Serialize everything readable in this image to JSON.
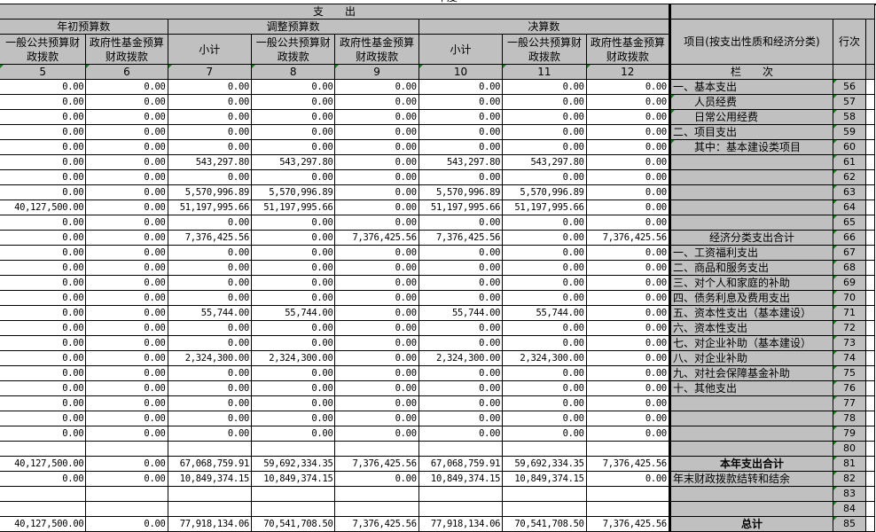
{
  "header": {
    "top_fragment": "年度",
    "expenditure": "支　　出",
    "groups": [
      "年初预算数",
      "调整预算数",
      "决算数"
    ],
    "sub": {
      "general": "一般公共预算财政拨款",
      "fund": "政府性基金预算财政拨款",
      "subtotal": "小计"
    },
    "item_col": "项目(按支出性质和经济分类)",
    "row_col": "行次",
    "col_numbers": [
      "5",
      "6",
      "7",
      "8",
      "9",
      "10",
      "11",
      "12"
    ],
    "lan_ci": "栏　　次"
  },
  "rows": [
    {
      "no": "56",
      "item": "一、基本支出",
      "style": "",
      "v": [
        "0.00",
        "0.00",
        "0.00",
        "0.00",
        "0.00",
        "0.00",
        "0.00",
        "0.00"
      ]
    },
    {
      "no": "57",
      "item": "人员经费",
      "style": "ind",
      "v": [
        "0.00",
        "0.00",
        "0.00",
        "0.00",
        "0.00",
        "0.00",
        "0.00",
        "0.00"
      ]
    },
    {
      "no": "58",
      "item": "日常公用经费",
      "style": "ind",
      "v": [
        "0.00",
        "0.00",
        "0.00",
        "0.00",
        "0.00",
        "0.00",
        "0.00",
        "0.00"
      ]
    },
    {
      "no": "59",
      "item": "二、项目支出",
      "style": "",
      "v": [
        "0.00",
        "0.00",
        "0.00",
        "0.00",
        "0.00",
        "0.00",
        "0.00",
        "0.00"
      ]
    },
    {
      "no": "60",
      "item": "其中：基本建设类项目",
      "style": "ind",
      "v": [
        "0.00",
        "0.00",
        "0.00",
        "0.00",
        "0.00",
        "0.00",
        "0.00",
        "0.00"
      ]
    },
    {
      "no": "61",
      "item": "",
      "style": "",
      "v": [
        "0.00",
        "0.00",
        "543,297.80",
        "543,297.80",
        "0.00",
        "543,297.80",
        "543,297.80",
        "0.00"
      ]
    },
    {
      "no": "62",
      "item": "",
      "style": "",
      "v": [
        "0.00",
        "0.00",
        "0.00",
        "0.00",
        "0.00",
        "0.00",
        "0.00",
        "0.00"
      ]
    },
    {
      "no": "63",
      "item": "",
      "style": "",
      "v": [
        "0.00",
        "0.00",
        "5,570,996.89",
        "5,570,996.89",
        "0.00",
        "5,570,996.89",
        "5,570,996.89",
        "0.00"
      ]
    },
    {
      "no": "64",
      "item": "",
      "style": "",
      "v": [
        "40,127,500.00",
        "0.00",
        "51,197,995.66",
        "51,197,995.66",
        "0.00",
        "51,197,995.66",
        "51,197,995.66",
        "0.00"
      ]
    },
    {
      "no": "65",
      "item": "",
      "style": "",
      "v": [
        "0.00",
        "0.00",
        "0.00",
        "0.00",
        "0.00",
        "0.00",
        "0.00",
        "0.00"
      ]
    },
    {
      "no": "66",
      "item": "经济分类支出合计",
      "style": "c",
      "v": [
        "0.00",
        "0.00",
        "7,376,425.56",
        "0.00",
        "7,376,425.56",
        "7,376,425.56",
        "0.00",
        "7,376,425.56"
      ]
    },
    {
      "no": "67",
      "item": "一、工资福利支出",
      "style": "",
      "v": [
        "0.00",
        "0.00",
        "0.00",
        "0.00",
        "0.00",
        "0.00",
        "0.00",
        "0.00"
      ]
    },
    {
      "no": "68",
      "item": "二、商品和服务支出",
      "style": "",
      "v": [
        "0.00",
        "0.00",
        "0.00",
        "0.00",
        "0.00",
        "0.00",
        "0.00",
        "0.00"
      ]
    },
    {
      "no": "69",
      "item": "三、对个人和家庭的补助",
      "style": "",
      "v": [
        "0.00",
        "0.00",
        "0.00",
        "0.00",
        "0.00",
        "0.00",
        "0.00",
        "0.00"
      ]
    },
    {
      "no": "70",
      "item": "四、债务利息及费用支出",
      "style": "",
      "v": [
        "0.00",
        "0.00",
        "0.00",
        "0.00",
        "0.00",
        "0.00",
        "0.00",
        "0.00"
      ]
    },
    {
      "no": "71",
      "item": "五、资本性支出（基本建设）",
      "style": "",
      "v": [
        "0.00",
        "0.00",
        "55,744.00",
        "55,744.00",
        "0.00",
        "55,744.00",
        "55,744.00",
        "0.00"
      ]
    },
    {
      "no": "72",
      "item": "六、资本性支出",
      "style": "",
      "v": [
        "0.00",
        "0.00",
        "0.00",
        "0.00",
        "0.00",
        "0.00",
        "0.00",
        "0.00"
      ]
    },
    {
      "no": "73",
      "item": "七、对企业补助（基本建设）",
      "style": "",
      "v": [
        "0.00",
        "0.00",
        "0.00",
        "0.00",
        "0.00",
        "0.00",
        "0.00",
        "0.00"
      ]
    },
    {
      "no": "74",
      "item": "八、对企业补助",
      "style": "",
      "v": [
        "0.00",
        "0.00",
        "2,324,300.00",
        "2,324,300.00",
        "0.00",
        "2,324,300.00",
        "2,324,300.00",
        "0.00"
      ]
    },
    {
      "no": "75",
      "item": "九、对社会保障基金补助",
      "style": "",
      "v": [
        "0.00",
        "0.00",
        "0.00",
        "0.00",
        "0.00",
        "0.00",
        "0.00",
        "0.00"
      ]
    },
    {
      "no": "76",
      "item": "十、其他支出",
      "style": "",
      "v": [
        "0.00",
        "0.00",
        "0.00",
        "0.00",
        "0.00",
        "0.00",
        "0.00",
        "0.00"
      ]
    },
    {
      "no": "77",
      "item": "",
      "style": "",
      "v": [
        "0.00",
        "0.00",
        "0.00",
        "0.00",
        "0.00",
        "0.00",
        "0.00",
        "0.00"
      ]
    },
    {
      "no": "78",
      "item": "",
      "style": "",
      "v": [
        "0.00",
        "0.00",
        "0.00",
        "0.00",
        "0.00",
        "0.00",
        "0.00",
        "0.00"
      ]
    },
    {
      "no": "79",
      "item": "",
      "style": "",
      "v": [
        "0.00",
        "0.00",
        "0.00",
        "0.00",
        "0.00",
        "0.00",
        "0.00",
        "0.00"
      ]
    },
    {
      "no": "80",
      "item": "",
      "style": "",
      "v": [
        "",
        "",
        "",
        "",
        "",
        "",
        "",
        ""
      ]
    },
    {
      "no": "81",
      "item": "本年支出合计",
      "style": "c b",
      "v": [
        "40,127,500.00",
        "0.00",
        "67,068,759.91",
        "59,692,334.35",
        "7,376,425.56",
        "67,068,759.91",
        "59,692,334.35",
        "7,376,425.56"
      ]
    },
    {
      "no": "82",
      "item": "年末财政拨款结转和结余",
      "style": "",
      "v": [
        "0.00",
        "0.00",
        "10,849,374.15",
        "10,849,374.15",
        "0.00",
        "10,849,374.15",
        "10,849,374.15",
        "0.00"
      ]
    },
    {
      "no": "83",
      "item": "",
      "style": "",
      "v": [
        "",
        "",
        "",
        "",
        "",
        "",
        "",
        ""
      ]
    },
    {
      "no": "84",
      "item": "",
      "style": "",
      "v": [
        "",
        "",
        "",
        "",
        "",
        "",
        "",
        ""
      ]
    },
    {
      "no": "85",
      "item": "总计",
      "style": "c b",
      "v": [
        "40,127,500.00",
        "0.00",
        "77,918,134.06",
        "70,541,708.50",
        "7,376,425.56",
        "77,918,134.06",
        "70,541,708.50",
        "7,376,425.56"
      ]
    }
  ]
}
